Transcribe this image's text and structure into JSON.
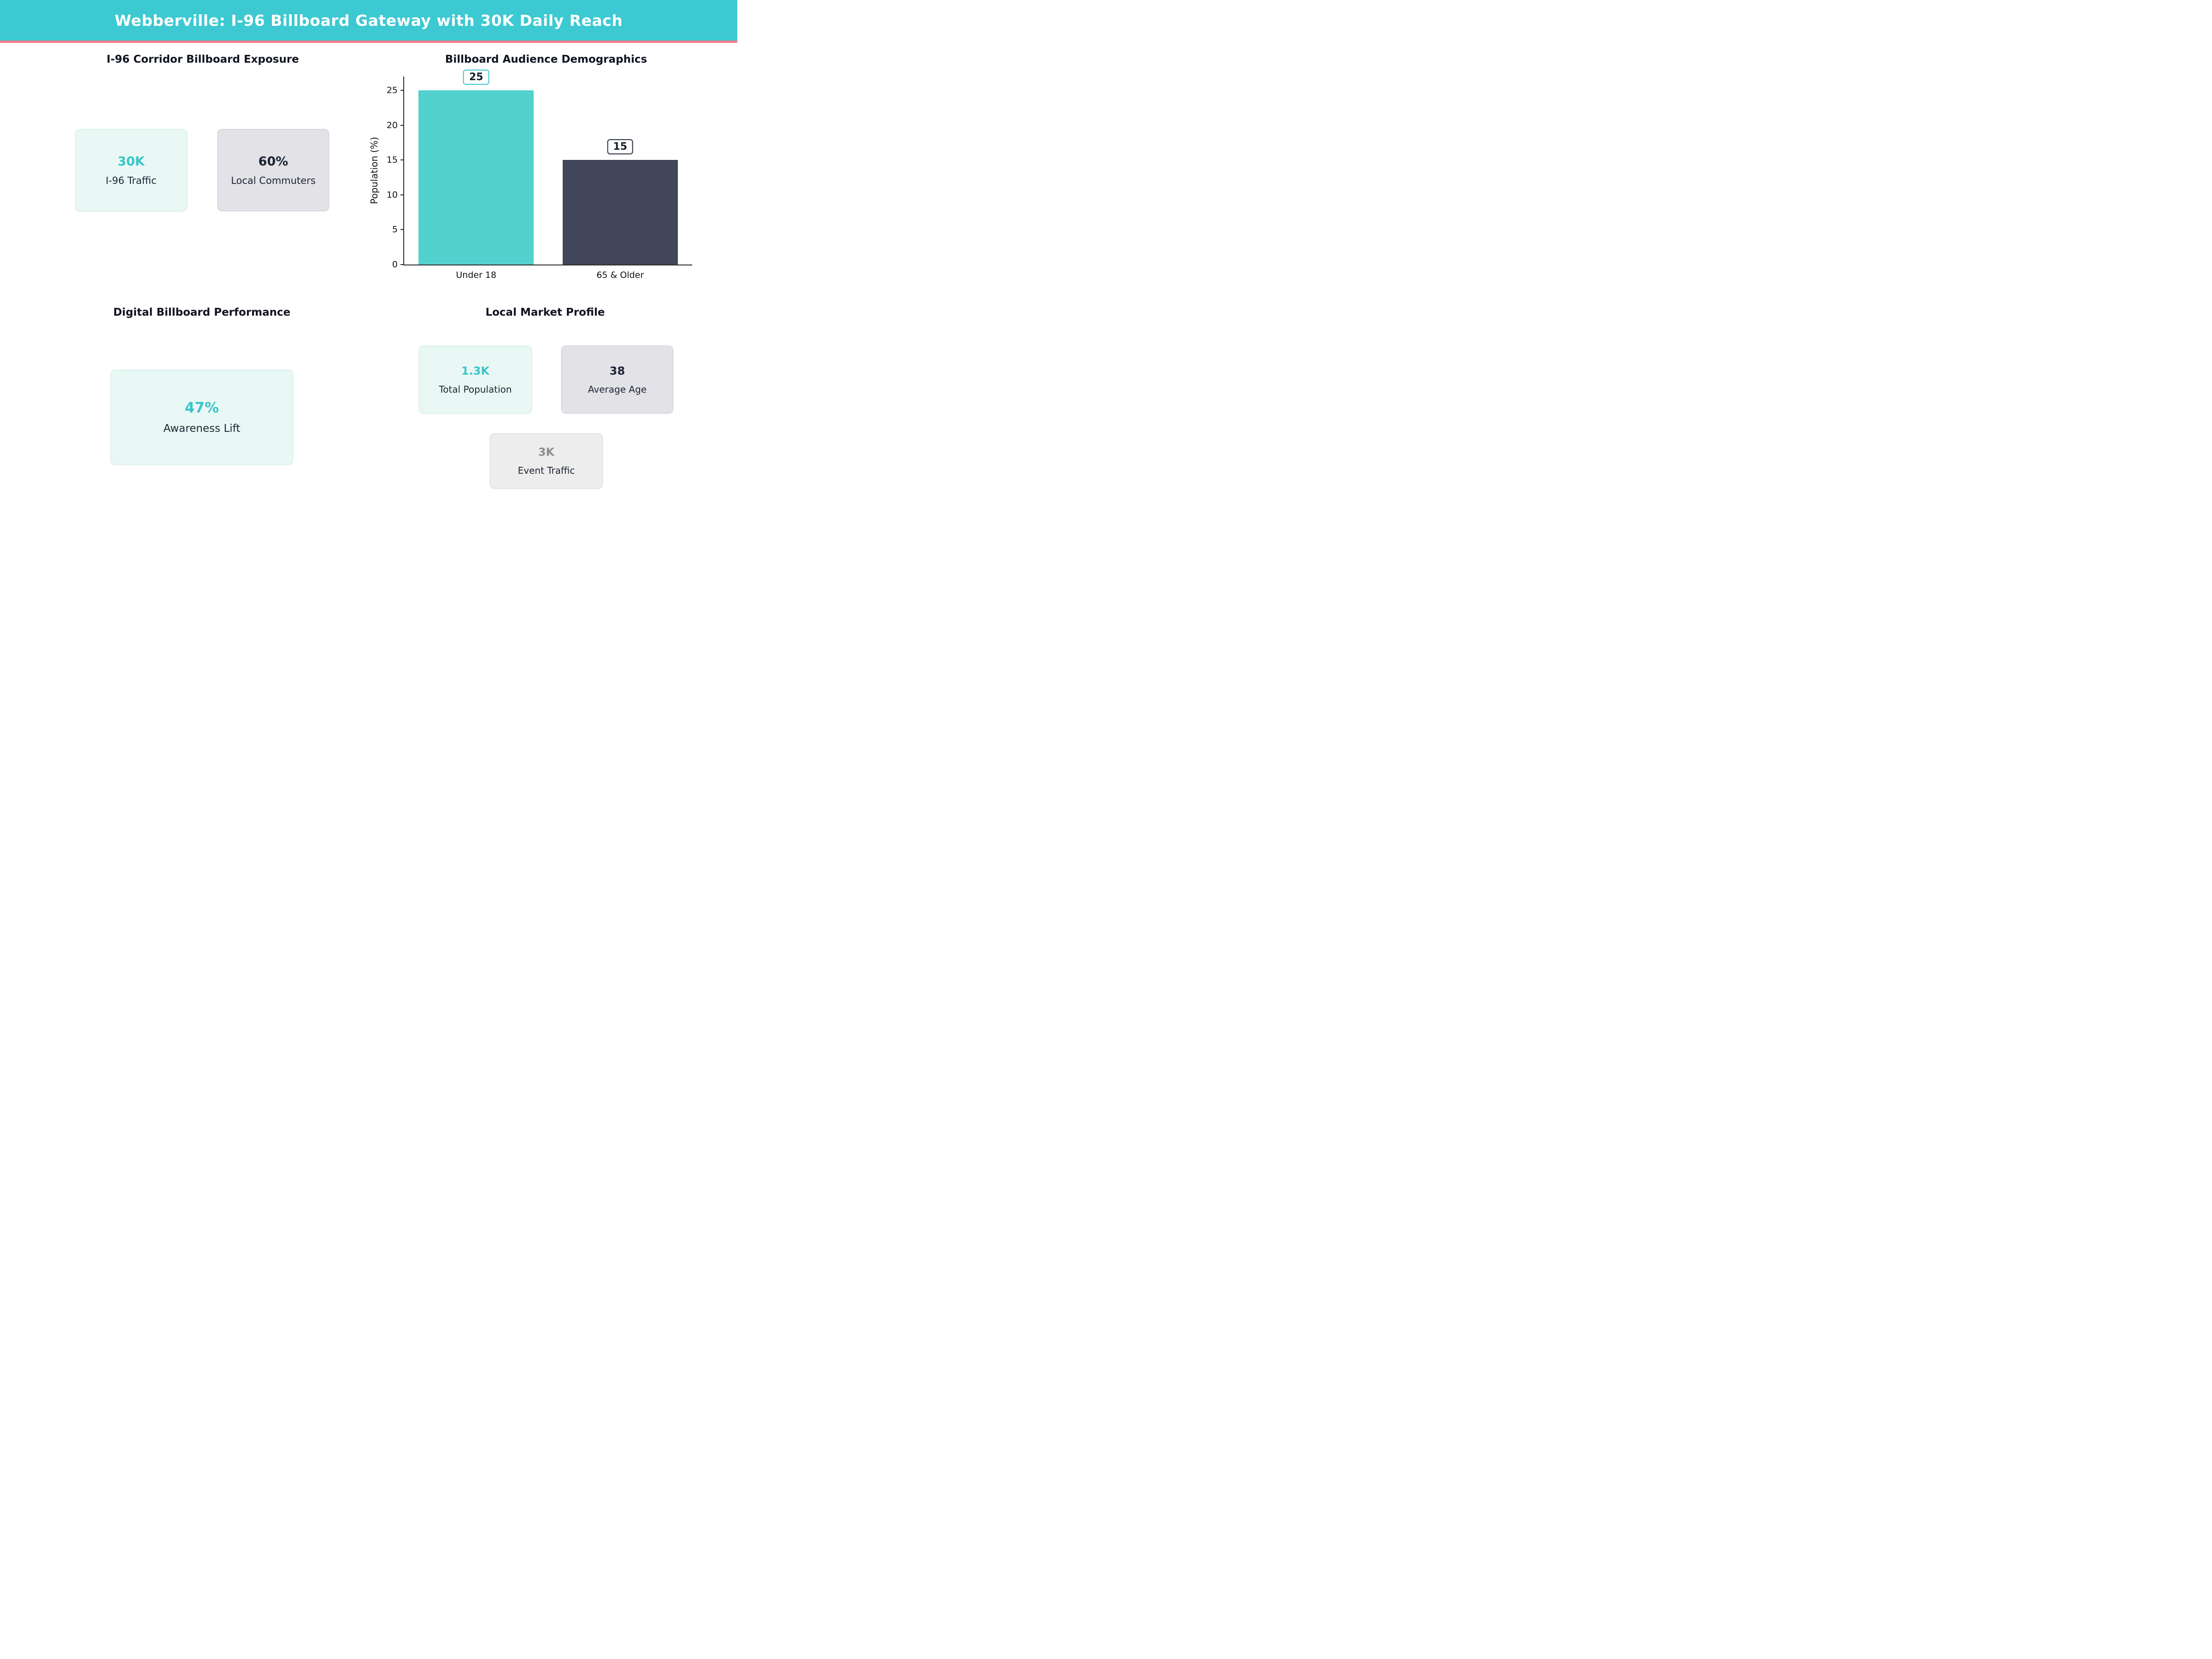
{
  "header": {
    "title": "Webberville: I-96 Billboard Gateway with 30K Daily Reach"
  },
  "colors": {
    "header_bg": "#3cc9d1",
    "header_underline": "#ef7d8c",
    "accent_teal": "#3bc4cc",
    "text_dark": "#1d2433",
    "bar_teal": "#52d1ce",
    "bar_dark": "#424659",
    "card_mint_bg": "#e9f8f4",
    "card_gray_bg": "#e2e2e7",
    "card_lightgray_bg": "#ededed"
  },
  "sections": {
    "exposure": {
      "title": "I-96 Corridor Billboard Exposure",
      "cards": [
        {
          "value": "30K",
          "label": "I-96 Traffic"
        },
        {
          "value": "60%",
          "label": "Local Commuters"
        }
      ]
    },
    "demographics": {
      "title": "Billboard Audience Demographics"
    },
    "performance": {
      "title": "Digital Billboard Performance",
      "cards": [
        {
          "value": "47%",
          "label": "Awareness Lift"
        }
      ]
    },
    "market": {
      "title": "Local Market Profile",
      "cards": [
        {
          "value": "1.3K",
          "label": "Total Population"
        },
        {
          "value": "38",
          "label": "Average Age"
        },
        {
          "value": "3K",
          "label": "Event Traffic"
        }
      ]
    }
  },
  "chart_data": {
    "type": "bar",
    "title": "Billboard Audience Demographics",
    "categories": [
      "Under 18",
      "65 & Older"
    ],
    "values": [
      25,
      15
    ],
    "value_labels": [
      "25",
      "15"
    ],
    "bar_colors": [
      "#52d1ce",
      "#424659"
    ],
    "value_label_border_colors": [
      "#3bc4cc",
      "#2a2e3f"
    ],
    "xlabel": "",
    "ylabel": "Population (%)",
    "ylim": [
      0,
      27
    ],
    "yticks": [
      0,
      5,
      10,
      15,
      20,
      25
    ],
    "grid": false,
    "legend": false,
    "bar_width_fraction": 0.8
  }
}
